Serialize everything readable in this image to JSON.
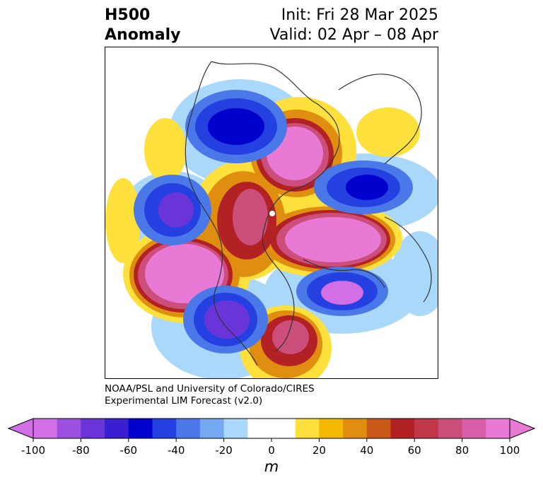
{
  "header": {
    "title_line1": "H500",
    "title_line2": "Anomaly",
    "init_text": "Init: Fri 28 Mar 2025",
    "valid_text": "Valid: 02 Apr – 08 Apr"
  },
  "credit": {
    "line1": "NOAA/PSL and University of Colorado/CIRES",
    "line2": "Experimental LIM Forecast (v2.0)"
  },
  "colorbar": {
    "unit": "m",
    "ticks": [
      "-100",
      "-80",
      "-60",
      "-40",
      "-20",
      "0",
      "20",
      "40",
      "60",
      "80",
      "100"
    ],
    "colors": [
      "#d26ee6",
      "#9b50e0",
      "#6a35d8",
      "#3a1fd0",
      "#0000cd",
      "#2440e0",
      "#4a78e8",
      "#74a8f0",
      "#aad8fa",
      "#ffffff",
      "#ffffff",
      "#fee03c",
      "#f4b800",
      "#e08e10",
      "#c85818",
      "#b22224",
      "#c0384a",
      "#cc4e7a",
      "#d860a8",
      "#e87ad6"
    ],
    "over_color": "#e87ad6",
    "under_color": "#d26ee6"
  }
}
